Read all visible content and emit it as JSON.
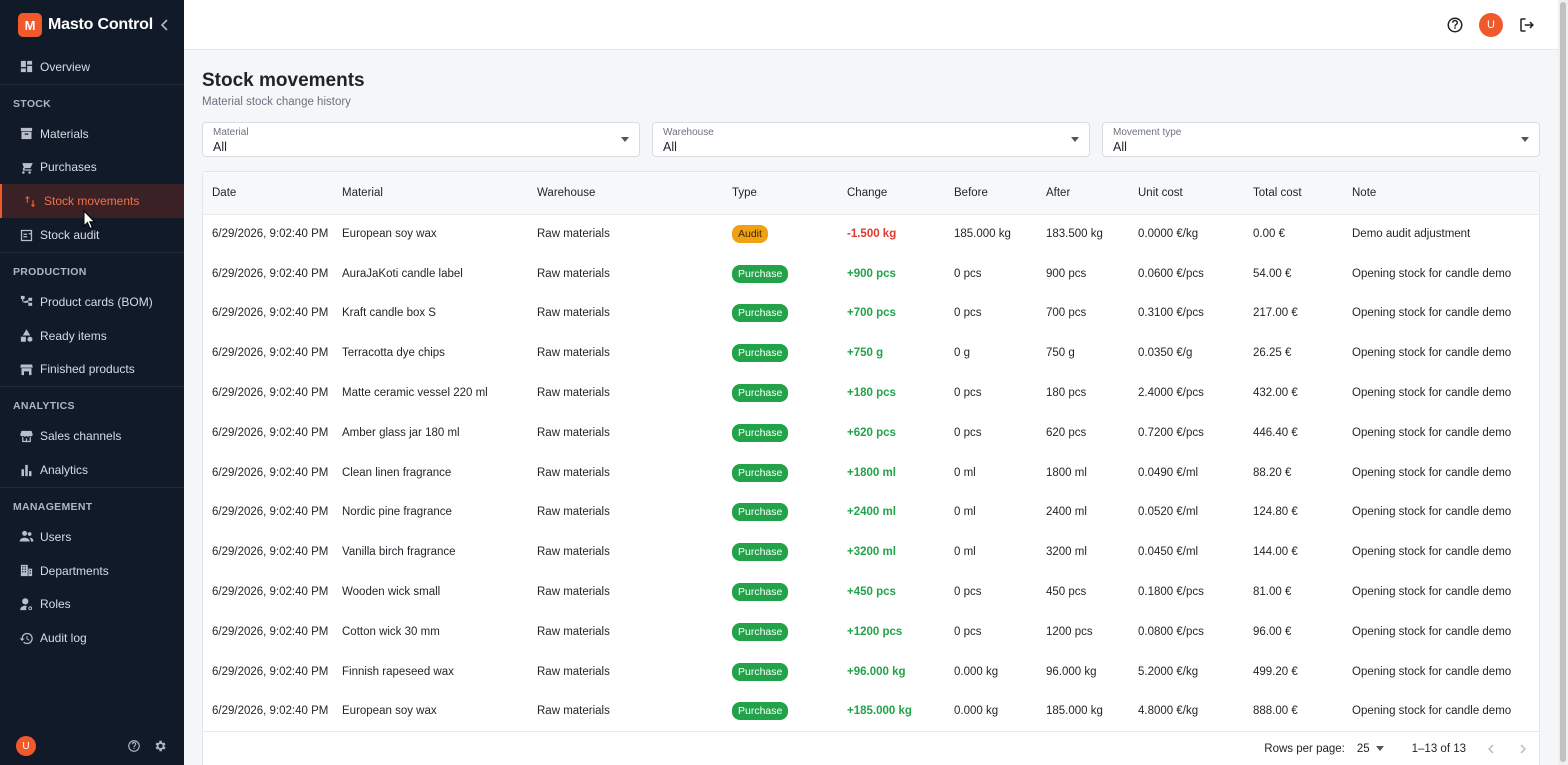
{
  "brand": {
    "logo_letter": "M",
    "name": "Masto Control"
  },
  "sidebar": {
    "items_top": [
      {
        "label": "Overview",
        "icon": "dashboard-icon"
      }
    ],
    "sections": [
      {
        "title": "STOCK",
        "items": [
          {
            "label": "Materials",
            "icon": "archive-icon"
          },
          {
            "label": "Purchases",
            "icon": "cart-icon"
          },
          {
            "label": "Stock movements",
            "icon": "swap-vertical-icon",
            "active": true
          },
          {
            "label": "Stock audit",
            "icon": "checklist-icon"
          }
        ]
      },
      {
        "title": "PRODUCTION",
        "items": [
          {
            "label": "Product cards (BOM)",
            "icon": "tree-icon"
          },
          {
            "label": "Ready items",
            "icon": "shapes-icon"
          },
          {
            "label": "Finished products",
            "icon": "store-icon"
          }
        ]
      },
      {
        "title": "ANALYTICS",
        "items": [
          {
            "label": "Sales channels",
            "icon": "storefront-icon"
          },
          {
            "label": "Analytics",
            "icon": "bar-chart-icon"
          }
        ]
      },
      {
        "title": "MANAGEMENT",
        "items": [
          {
            "label": "Users",
            "icon": "users-icon"
          },
          {
            "label": "Departments",
            "icon": "building-icon"
          },
          {
            "label": "Roles",
            "icon": "role-icon"
          },
          {
            "label": "Audit log",
            "icon": "history-icon"
          }
        ]
      }
    ],
    "footer": {
      "avatar_letter": "U"
    }
  },
  "topbar": {
    "avatar_letter": "U"
  },
  "page": {
    "title": "Stock movements",
    "subtitle": "Material stock change history"
  },
  "filters": [
    {
      "label": "Material",
      "value": "All"
    },
    {
      "label": "Warehouse",
      "value": "All"
    },
    {
      "label": "Movement type",
      "value": "All"
    }
  ],
  "table": {
    "columns": [
      "Date",
      "Material",
      "Warehouse",
      "Type",
      "Change",
      "Before",
      "After",
      "Unit cost",
      "Total cost",
      "Note"
    ],
    "rows": [
      {
        "date": "6/29/2026, 9:02:40 PM",
        "material": "European soy wax",
        "warehouse": "Raw materials",
        "type": "Audit",
        "change": "-1.500 kg",
        "before": "185.000 kg",
        "after": "183.500 kg",
        "unit_cost": "0.0000 €/kg",
        "total_cost": "0.00 €",
        "note": "Demo audit adjustment"
      },
      {
        "date": "6/29/2026, 9:02:40 PM",
        "material": "AuraJaKoti candle label",
        "warehouse": "Raw materials",
        "type": "Purchase",
        "change": "+900 pcs",
        "before": "0 pcs",
        "after": "900 pcs",
        "unit_cost": "0.0600 €/pcs",
        "total_cost": "54.00 €",
        "note": "Opening stock for candle demo"
      },
      {
        "date": "6/29/2026, 9:02:40 PM",
        "material": "Kraft candle box S",
        "warehouse": "Raw materials",
        "type": "Purchase",
        "change": "+700 pcs",
        "before": "0 pcs",
        "after": "700 pcs",
        "unit_cost": "0.3100 €/pcs",
        "total_cost": "217.00 €",
        "note": "Opening stock for candle demo"
      },
      {
        "date": "6/29/2026, 9:02:40 PM",
        "material": "Terracotta dye chips",
        "warehouse": "Raw materials",
        "type": "Purchase",
        "change": "+750 g",
        "before": "0 g",
        "after": "750 g",
        "unit_cost": "0.0350 €/g",
        "total_cost": "26.25 €",
        "note": "Opening stock for candle demo"
      },
      {
        "date": "6/29/2026, 9:02:40 PM",
        "material": "Matte ceramic vessel 220 ml",
        "warehouse": "Raw materials",
        "type": "Purchase",
        "change": "+180 pcs",
        "before": "0 pcs",
        "after": "180 pcs",
        "unit_cost": "2.4000 €/pcs",
        "total_cost": "432.00 €",
        "note": "Opening stock for candle demo"
      },
      {
        "date": "6/29/2026, 9:02:40 PM",
        "material": "Amber glass jar 180 ml",
        "warehouse": "Raw materials",
        "type": "Purchase",
        "change": "+620 pcs",
        "before": "0 pcs",
        "after": "620 pcs",
        "unit_cost": "0.7200 €/pcs",
        "total_cost": "446.40 €",
        "note": "Opening stock for candle demo"
      },
      {
        "date": "6/29/2026, 9:02:40 PM",
        "material": "Clean linen fragrance",
        "warehouse": "Raw materials",
        "type": "Purchase",
        "change": "+1800 ml",
        "before": "0 ml",
        "after": "1800 ml",
        "unit_cost": "0.0490 €/ml",
        "total_cost": "88.20 €",
        "note": "Opening stock for candle demo"
      },
      {
        "date": "6/29/2026, 9:02:40 PM",
        "material": "Nordic pine fragrance",
        "warehouse": "Raw materials",
        "type": "Purchase",
        "change": "+2400 ml",
        "before": "0 ml",
        "after": "2400 ml",
        "unit_cost": "0.0520 €/ml",
        "total_cost": "124.80 €",
        "note": "Opening stock for candle demo"
      },
      {
        "date": "6/29/2026, 9:02:40 PM",
        "material": "Vanilla birch fragrance",
        "warehouse": "Raw materials",
        "type": "Purchase",
        "change": "+3200 ml",
        "before": "0 ml",
        "after": "3200 ml",
        "unit_cost": "0.0450 €/ml",
        "total_cost": "144.00 €",
        "note": "Opening stock for candle demo"
      },
      {
        "date": "6/29/2026, 9:02:40 PM",
        "material": "Wooden wick small",
        "warehouse": "Raw materials",
        "type": "Purchase",
        "change": "+450 pcs",
        "before": "0 pcs",
        "after": "450 pcs",
        "unit_cost": "0.1800 €/pcs",
        "total_cost": "81.00 €",
        "note": "Opening stock for candle demo"
      },
      {
        "date": "6/29/2026, 9:02:40 PM",
        "material": "Cotton wick 30 mm",
        "warehouse": "Raw materials",
        "type": "Purchase",
        "change": "+1200 pcs",
        "before": "0 pcs",
        "after": "1200 pcs",
        "unit_cost": "0.0800 €/pcs",
        "total_cost": "96.00 €",
        "note": "Opening stock for candle demo"
      },
      {
        "date": "6/29/2026, 9:02:40 PM",
        "material": "Finnish rapeseed wax",
        "warehouse": "Raw materials",
        "type": "Purchase",
        "change": "+96.000 kg",
        "before": "0.000 kg",
        "after": "96.000 kg",
        "unit_cost": "5.2000 €/kg",
        "total_cost": "499.20 €",
        "note": "Opening stock for candle demo"
      },
      {
        "date": "6/29/2026, 9:02:40 PM",
        "material": "European soy wax",
        "warehouse": "Raw materials",
        "type": "Purchase",
        "change": "+185.000 kg",
        "before": "0.000 kg",
        "after": "185.000 kg",
        "unit_cost": "4.8000 €/kg",
        "total_cost": "888.00 €",
        "note": "Opening stock for candle demo"
      }
    ]
  },
  "pagination": {
    "rows_per_page_label": "Rows per page:",
    "rows_per_page": "25",
    "range": "1–13 of 13"
  },
  "colors": {
    "accent": "#f0592b",
    "sidebar_bg": "#111a29",
    "purchase": "#22a34a",
    "audit": "#f0a010",
    "negative": "#dc3a2f"
  }
}
